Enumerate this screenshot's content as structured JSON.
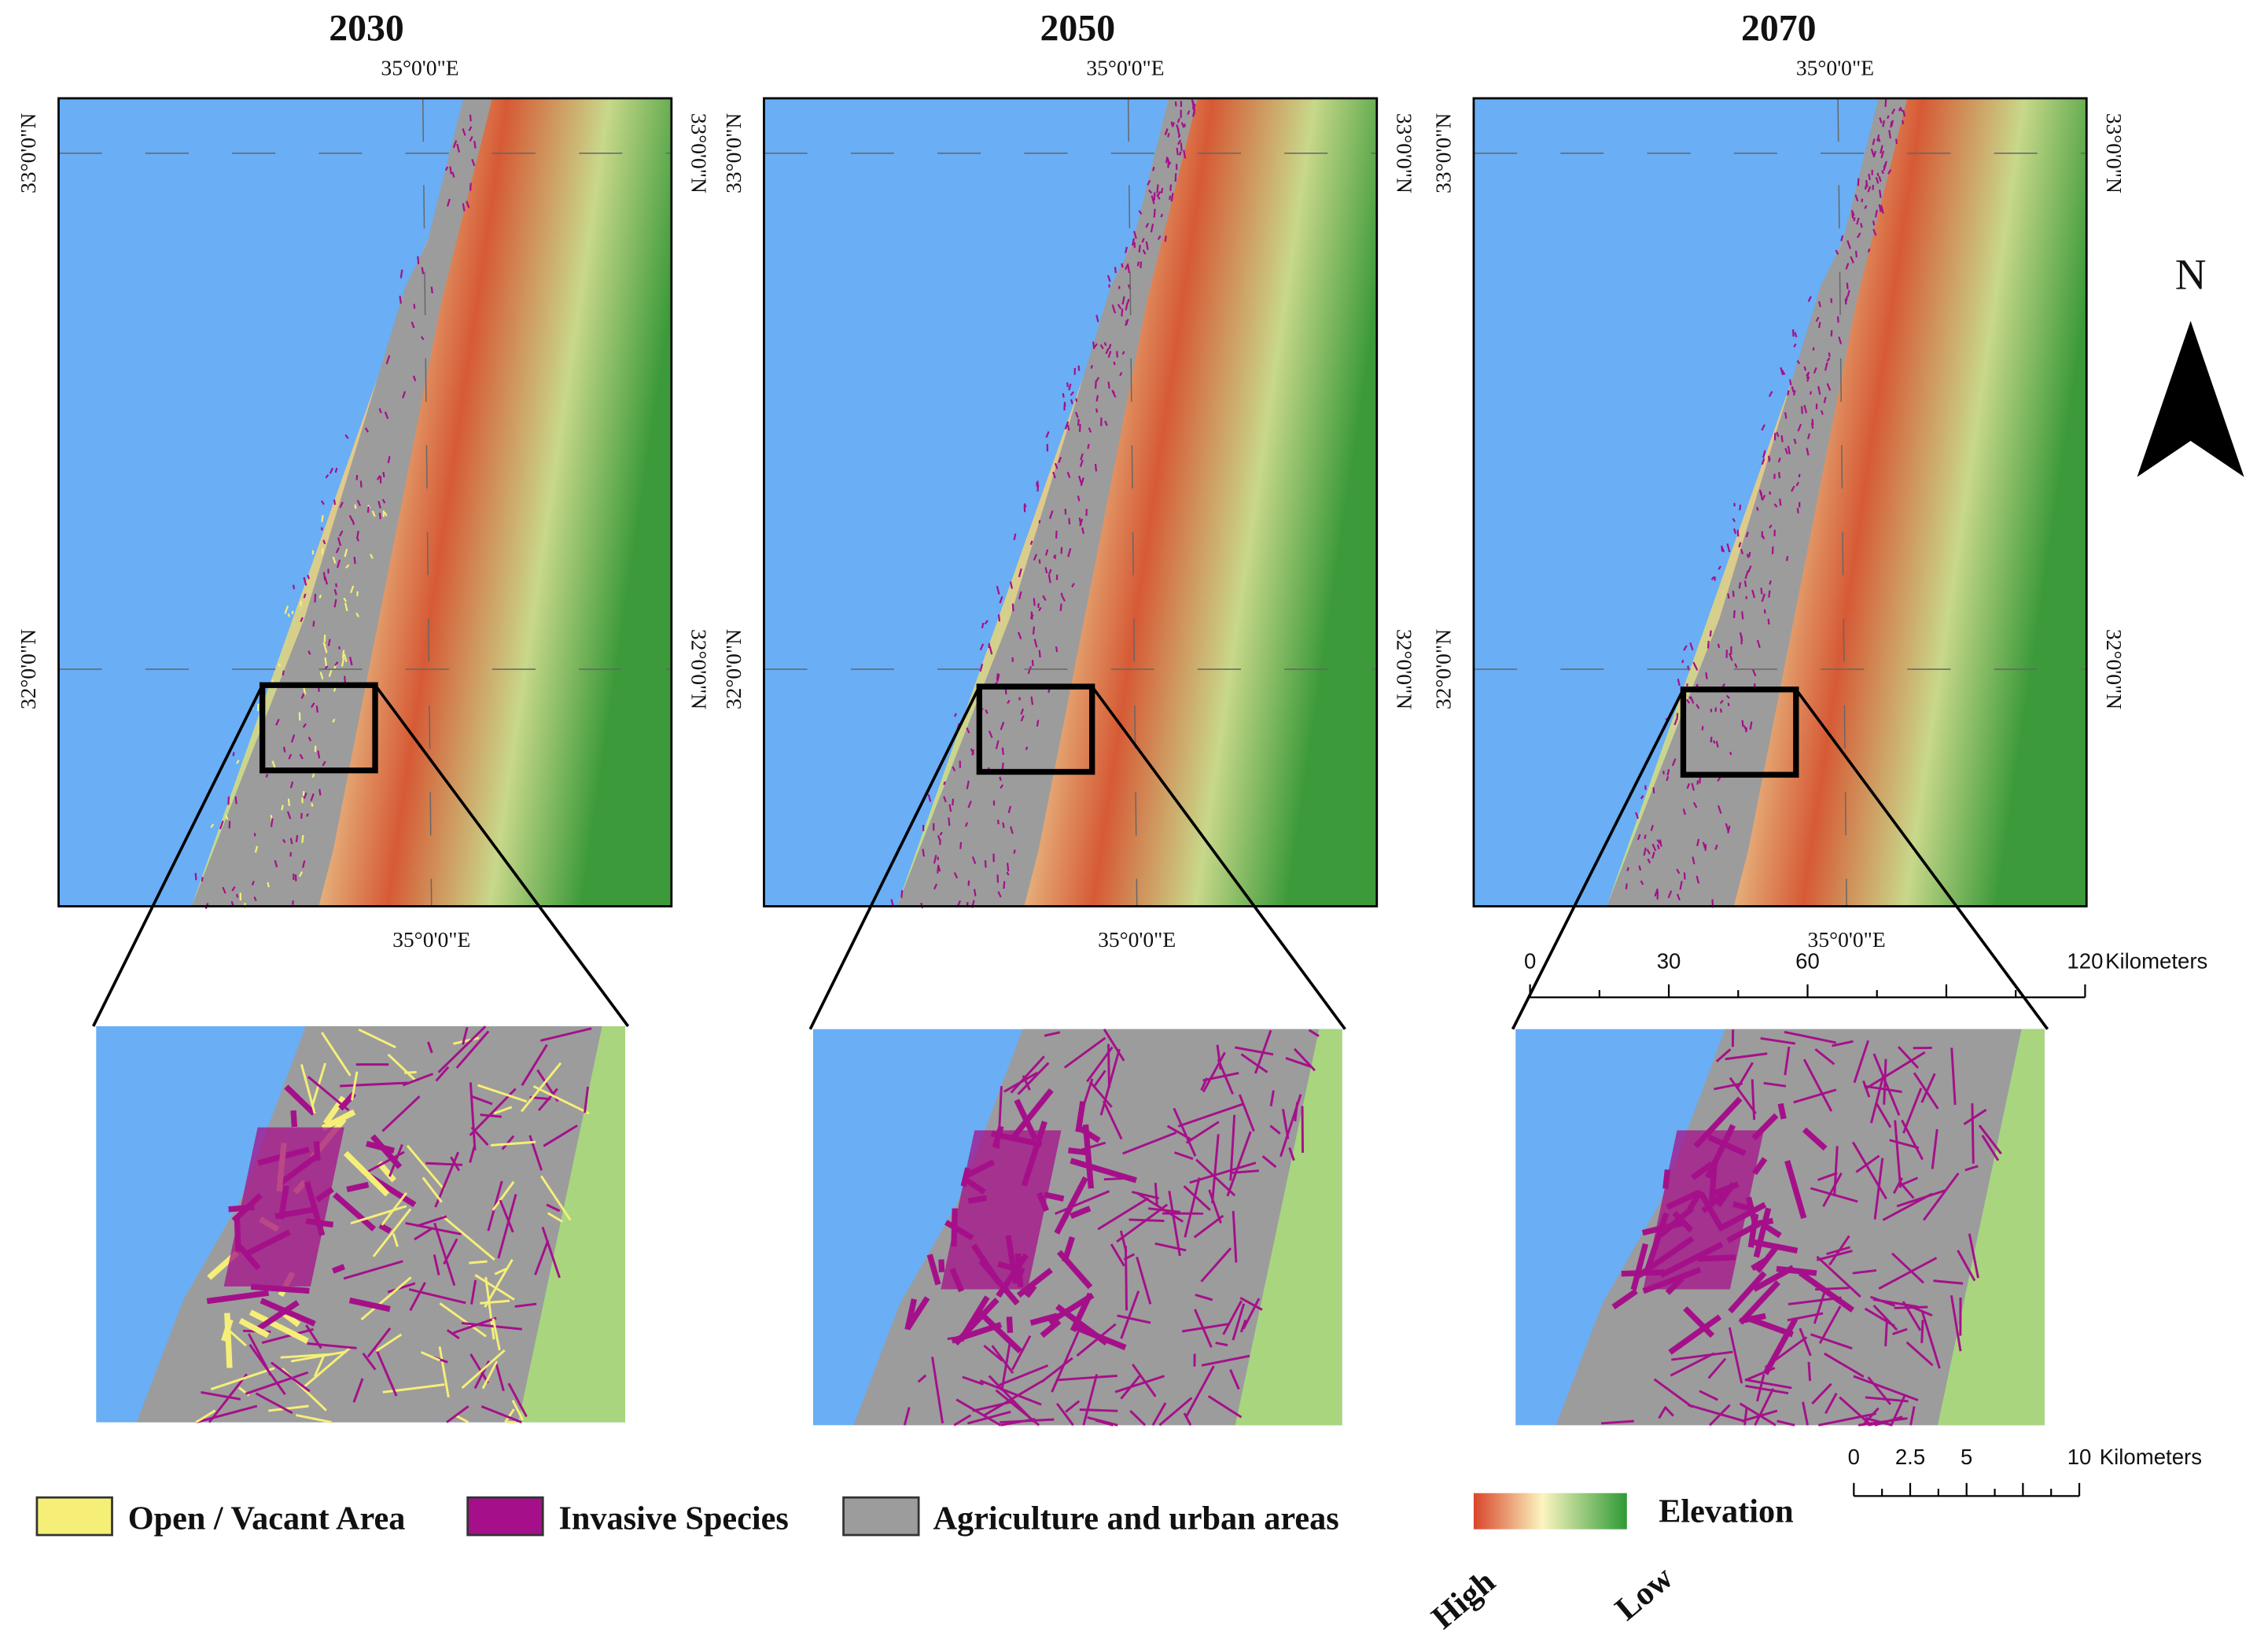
{
  "panels": [
    {
      "title": "2030",
      "lon_top": "35°0'0\"E",
      "lon_bottom": "35°0'0\"E",
      "lat_left": [
        "33°0'0\"N",
        "32°0'0\"N"
      ],
      "lat_right": [
        "33°0'0\"N",
        "32°0'0\"N"
      ]
    },
    {
      "title": "2050",
      "lon_top": "35°0'0\"E",
      "lon_bottom": "35°0'0\"E",
      "lat_left": [
        "33°0'0\"N",
        "32°0'0\"N"
      ],
      "lat_right": [
        "33°0'0\"N",
        "32°0'0\"N"
      ]
    },
    {
      "title": "2070",
      "lon_top": "35°0'0\"E",
      "lon_bottom": "35°0'0\"E",
      "lat_left": [
        "33°0'0\"N",
        "32°0'0\"N"
      ],
      "lat_right": [
        "33°0'0\"N",
        "32°0'0\"N"
      ]
    }
  ],
  "north": "N",
  "scale_map": {
    "labels": [
      "0",
      "30",
      "60",
      "120"
    ],
    "unit": "Kilometers"
  },
  "scale_inset": {
    "labels": [
      "0",
      "2.5",
      "5",
      "10"
    ],
    "unit": "Kilometers"
  },
  "legend": {
    "items": [
      {
        "label": "Open / Vacant Area",
        "color": "#f5ef78"
      },
      {
        "label": "Invasive Species",
        "color": "#a5108a"
      },
      {
        "label": "Agriculture and urban areas",
        "color": "#9c9c9c"
      }
    ],
    "elevation": {
      "title": "Elevation",
      "high": "High",
      "low": "Low"
    }
  }
}
